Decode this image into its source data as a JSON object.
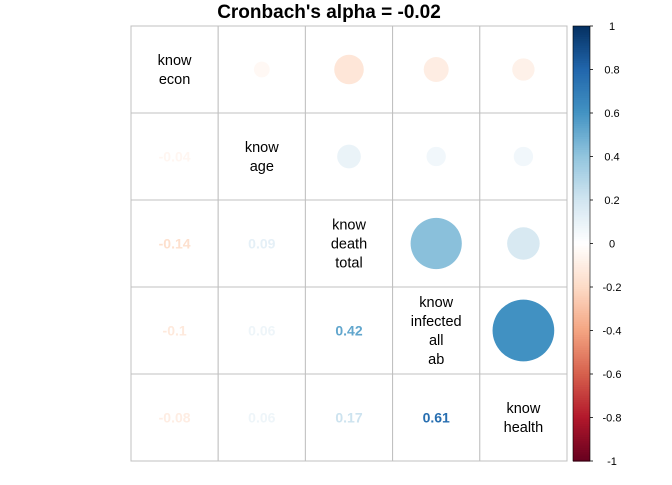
{
  "chart_data": {
    "type": "heatmap",
    "subtype": "correlation-matrix",
    "title": "Cronbach's alpha =  -0.02",
    "variables": [
      [
        "know",
        "econ"
      ],
      [
        "know",
        "age"
      ],
      [
        "know",
        "death",
        "total"
      ],
      [
        "know",
        "infected",
        "all",
        "ab"
      ],
      [
        "know",
        "health"
      ]
    ],
    "matrix": [
      [
        1,
        -0.04,
        -0.14,
        -0.1,
        -0.08
      ],
      [
        -0.04,
        1,
        0.09,
        0.06,
        0.06
      ],
      [
        -0.14,
        0.09,
        1,
        0.42,
        0.17
      ],
      [
        -0.1,
        0.06,
        0.42,
        1,
        0.61
      ],
      [
        -0.08,
        0.06,
        0.17,
        0.61,
        1
      ]
    ],
    "lower_labels": [
      {
        "row": 1,
        "col": 0,
        "text": "-0.04"
      },
      {
        "row": 2,
        "col": 0,
        "text": "-0.14"
      },
      {
        "row": 2,
        "col": 1,
        "text": "0.09"
      },
      {
        "row": 3,
        "col": 0,
        "text": "-0.1"
      },
      {
        "row": 3,
        "col": 1,
        "text": "0.06"
      },
      {
        "row": 3,
        "col": 2,
        "text": "0.42"
      },
      {
        "row": 4,
        "col": 0,
        "text": "-0.08"
      },
      {
        "row": 4,
        "col": 1,
        "text": "0.06"
      },
      {
        "row": 4,
        "col": 2,
        "text": "0.17"
      },
      {
        "row": 4,
        "col": 3,
        "text": "0.61"
      }
    ],
    "upper_display": "circle",
    "lower_display": "number",
    "diagonal_display": "variable-name",
    "grid": true,
    "colorbar": {
      "position": "right",
      "range": [
        -1,
        1
      ],
      "ticks": [
        "1",
        "0.8",
        "0.6",
        "0.4",
        "0.2",
        "0",
        "-0.2",
        "-0.4",
        "-0.6",
        "-0.8",
        "-1"
      ],
      "colors": [
        "#67001F",
        "#B2182B",
        "#D6604D",
        "#F4A582",
        "#FDDBC7",
        "#FFFFFF",
        "#D1E5F0",
        "#92C5DE",
        "#4393C3",
        "#2166AC",
        "#053061"
      ]
    }
  }
}
